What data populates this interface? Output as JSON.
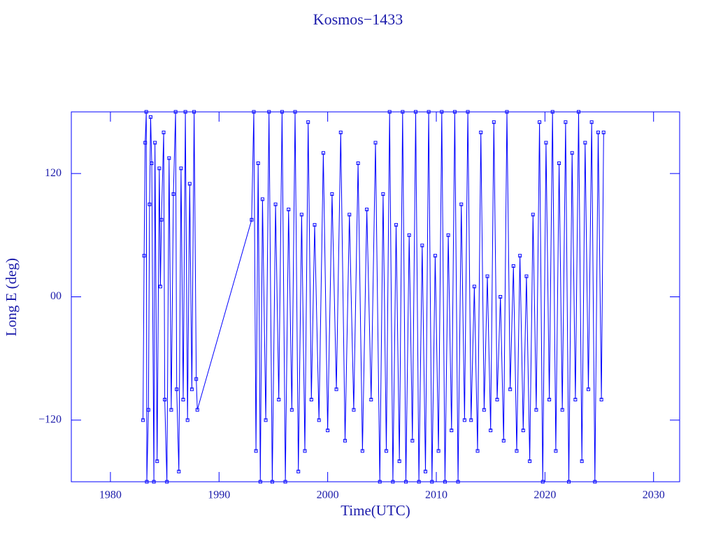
{
  "chart_data": {
    "type": "line",
    "title": "Kosmos−1433",
    "x_label": "Time(UTC)",
    "y_label": "Long E (deg)",
    "xlim": [
      1976.4,
      2032.4
    ],
    "xticks": [
      1980,
      1990,
      2000,
      2010,
      2020,
      2030
    ],
    "ylim": [
      -180,
      180
    ],
    "yticks": [
      {
        "value": -120,
        "label": "−120"
      },
      {
        "value": 0,
        "label": "00"
      },
      120
    ],
    "color": "#0000ff",
    "axis_color": "#1a1aaa",
    "markers": true,
    "x": [
      1983.0,
      1983.1,
      1983.2,
      1983.3,
      1983.35,
      1983.5,
      1983.6,
      1983.7,
      1983.8,
      1984.0,
      1984.1,
      1984.3,
      1984.5,
      1984.6,
      1984.7,
      1984.9,
      1985.0,
      1985.2,
      1985.4,
      1985.6,
      1985.8,
      1986.0,
      1986.1,
      1986.3,
      1986.5,
      1986.7,
      1986.9,
      1987.1,
      1987.3,
      1987.5,
      1987.7,
      1987.9,
      1988.0,
      1993.0,
      1993.2,
      1993.4,
      1993.6,
      1993.8,
      1994.0,
      1994.3,
      1994.6,
      1994.9,
      1995.2,
      1995.5,
      1995.8,
      1996.1,
      1996.4,
      1996.7,
      1997.0,
      1997.3,
      1997.6,
      1997.9,
      1998.2,
      1998.5,
      1998.8,
      1999.2,
      1999.6,
      2000.0,
      2000.4,
      2000.8,
      2001.2,
      2001.6,
      2002.0,
      2002.4,
      2002.8,
      2003.2,
      2003.6,
      2004.0,
      2004.4,
      2004.8,
      2005.1,
      2005.4,
      2005.7,
      2006.0,
      2006.3,
      2006.6,
      2006.9,
      2007.2,
      2007.5,
      2007.8,
      2008.1,
      2008.4,
      2008.7,
      2009.0,
      2009.3,
      2009.6,
      2009.9,
      2010.2,
      2010.5,
      2010.8,
      2011.1,
      2011.4,
      2011.7,
      2012.0,
      2012.3,
      2012.6,
      2012.9,
      2013.2,
      2013.5,
      2013.8,
      2014.1,
      2014.4,
      2014.7,
      2015.0,
      2015.3,
      2015.6,
      2015.9,
      2016.2,
      2016.5,
      2016.8,
      2017.1,
      2017.4,
      2017.7,
      2018.0,
      2018.3,
      2018.6,
      2018.9,
      2019.2,
      2019.5,
      2019.8,
      2020.1,
      2020.4,
      2020.7,
      2021.0,
      2021.3,
      2021.6,
      2021.9,
      2022.2,
      2022.5,
      2022.8,
      2023.1,
      2023.4,
      2023.7,
      2024.0,
      2024.3,
      2024.6,
      2024.9,
      2025.2,
      2025.4
    ],
    "values": [
      -120,
      40,
      150,
      180,
      -180,
      -110,
      90,
      175,
      130,
      -180,
      150,
      -160,
      125,
      10,
      75,
      160,
      -100,
      -180,
      135,
      -110,
      100,
      180,
      -90,
      -170,
      125,
      -100,
      180,
      -120,
      110,
      -90,
      180,
      -80,
      -110,
      75,
      180,
      -150,
      130,
      -180,
      95,
      -120,
      180,
      -180,
      90,
      -100,
      180,
      -180,
      85,
      -110,
      180,
      -170,
      80,
      -150,
      170,
      -100,
      70,
      -120,
      140,
      -130,
      100,
      -90,
      160,
      -140,
      80,
      -110,
      130,
      -150,
      85,
      -100,
      150,
      -180,
      100,
      -150,
      180,
      -180,
      70,
      -160,
      180,
      -180,
      60,
      -140,
      180,
      -180,
      50,
      -170,
      180,
      -180,
      40,
      -150,
      180,
      -180,
      60,
      -130,
      180,
      -180,
      90,
      -120,
      180,
      -120,
      10,
      -150,
      160,
      -110,
      20,
      -130,
      170,
      -100,
      0,
      -140,
      180,
      -90,
      30,
      -150,
      40,
      -130,
      20,
      -160,
      80,
      -110,
      170,
      -180,
      150,
      -100,
      180,
      -150,
      130,
      -110,
      170,
      -180,
      140,
      -100,
      180,
      -160,
      150,
      -90,
      170,
      -180,
      160,
      -100,
      160
    ]
  }
}
